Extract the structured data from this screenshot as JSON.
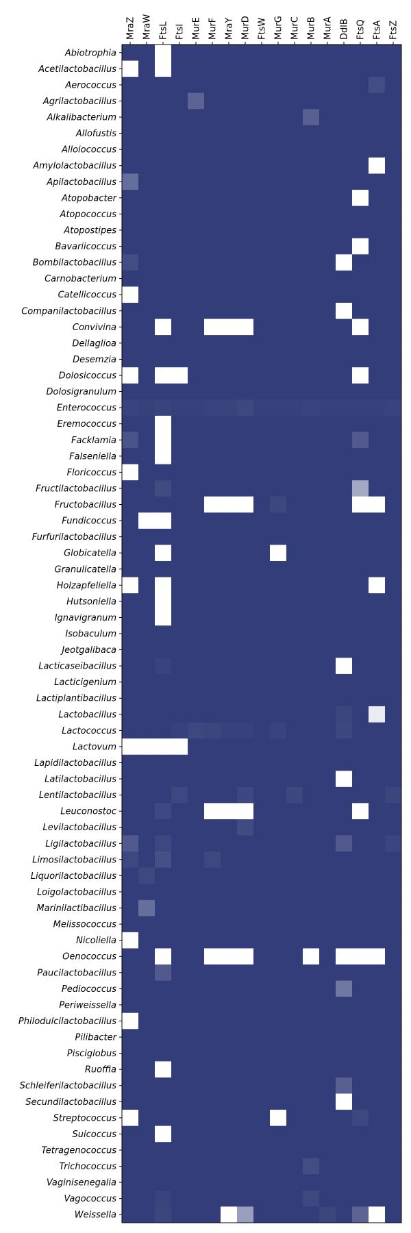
{
  "chart_data": {
    "type": "heatmap",
    "title": "",
    "xlabel": "",
    "ylabel": "",
    "colormap": {
      "low": "#333d79",
      "high": "#ffffff"
    },
    "value_range": [
      0,
      1
    ],
    "columns": [
      "MraZ",
      "MraW",
      "FtsL",
      "FtsI",
      "MurE",
      "MurF",
      "MraY",
      "MurD",
      "FtsW",
      "MurG",
      "MurC",
      "MurB",
      "MurA",
      "DdlB",
      "FtsQ",
      "FtsA",
      "FtsZ"
    ],
    "rows": [
      "Abiotrophia",
      "Acetilactobacillus",
      "Aerococcus",
      "Agrilactobacillus",
      "Alkalibacterium",
      "Allofustis",
      "Alloiococcus",
      "Amylolactobacillus",
      "Apilactobacillus",
      "Atopobacter",
      "Atopococcus",
      "Atopostipes",
      "Bavariicoccus",
      "Bombilactobacillus",
      "Carnobacterium",
      "Catellicoccus",
      "Companilactobacillus",
      "Convivina",
      "Dellaglioa",
      "Desemzia",
      "Dolosicoccus",
      "Dolosigranulum",
      "Enterococcus",
      "Eremococcus",
      "Facklamia",
      "Falseniella",
      "Floricoccus",
      "Fructilactobacillus",
      "Fructobacillus",
      "Fundicoccus",
      "Furfurilactobacillus",
      "Globicatella",
      "Granulicatella",
      "Holzapfeliella",
      "Hutsoniella",
      "Ignavigranum",
      "Isobaculum",
      "Jeotgalibaca",
      "Lacticaseibacillus",
      "Lacticigenium",
      "Lactiplantibacillus",
      "Lactobacillus",
      "Lactococcus",
      "Lactovum",
      "Lapidilactobacillus",
      "Latilactobacillus",
      "Lentilactobacillus",
      "Leuconostoc",
      "Levilactobacillus",
      "Ligilactobacillus",
      "Limosilactobacillus",
      "Liquorilactobacillus",
      "Loigolactobacillus",
      "Marinilactibacillus",
      "Melissococcus",
      "Nicoliella",
      "Oenococcus",
      "Paucilactobacillus",
      "Pediococcus",
      "Periweissella",
      "Philodulcilactobacillus",
      "Pilibacter",
      "Pisciglobus",
      "Ruoffia",
      "Schleiferilactobacillus",
      "Secundilactobacillus",
      "Streptococcus",
      "Suicoccus",
      "Tetragenococcus",
      "Trichococcus",
      "Vaginisenegalia",
      "Vagococcus",
      "Weissella"
    ],
    "values": [
      [
        0,
        0,
        1,
        0,
        0,
        0,
        0,
        0,
        0,
        0,
        0,
        0,
        0,
        0,
        0,
        0,
        0
      ],
      [
        1,
        0,
        1,
        0,
        0,
        0,
        0,
        0,
        0,
        0,
        0,
        0,
        0,
        0,
        0,
        0,
        0
      ],
      [
        0,
        0,
        0,
        0,
        0,
        0,
        0,
        0,
        0,
        0,
        0,
        0,
        0,
        0,
        0,
        0.08,
        0
      ],
      [
        0,
        0,
        0,
        0,
        0.2,
        0,
        0,
        0,
        0,
        0,
        0,
        0,
        0,
        0,
        0,
        0,
        0
      ],
      [
        0,
        0,
        0,
        0,
        0,
        0,
        0,
        0,
        0,
        0,
        0,
        0.18,
        0,
        0,
        0,
        0,
        0
      ],
      [
        0,
        0,
        0,
        0,
        0,
        0,
        0,
        0,
        0,
        0,
        0,
        0,
        0,
        0,
        0,
        0,
        0
      ],
      [
        0,
        0,
        0,
        0,
        0,
        0,
        0,
        0,
        0,
        0,
        0,
        0,
        0,
        0,
        0,
        0,
        0
      ],
      [
        0,
        0,
        0,
        0,
        0,
        0,
        0,
        0,
        0,
        0,
        0,
        0,
        0,
        0,
        0,
        1,
        0
      ],
      [
        0.25,
        0,
        0,
        0,
        0,
        0,
        0,
        0,
        0,
        0,
        0,
        0,
        0,
        0,
        0,
        0,
        0
      ],
      [
        0,
        0,
        0,
        0,
        0,
        0,
        0,
        0,
        0,
        0,
        0,
        0,
        0,
        0,
        1,
        0,
        0
      ],
      [
        0,
        0,
        0,
        0,
        0,
        0,
        0,
        0,
        0,
        0,
        0,
        0,
        0,
        0,
        0,
        0,
        0
      ],
      [
        0,
        0,
        0,
        0,
        0,
        0,
        0,
        0,
        0,
        0,
        0,
        0,
        0,
        0,
        0,
        0,
        0
      ],
      [
        0,
        0,
        0,
        0,
        0,
        0,
        0,
        0,
        0,
        0,
        0,
        0,
        0,
        0,
        1,
        0,
        0
      ],
      [
        0.08,
        0,
        0,
        0,
        0,
        0,
        0,
        0,
        0,
        0,
        0,
        0,
        0,
        1,
        0,
        0,
        0
      ],
      [
        0,
        0,
        0,
        0,
        0,
        0,
        0,
        0,
        0,
        0,
        0,
        0,
        0,
        0,
        0,
        0,
        0
      ],
      [
        1,
        0,
        0,
        0,
        0,
        0,
        0,
        0,
        0,
        0,
        0,
        0,
        0,
        0,
        0,
        0,
        0
      ],
      [
        0,
        0,
        0,
        0,
        0,
        0,
        0,
        0,
        0,
        0,
        0,
        0,
        0,
        1,
        0,
        0,
        0
      ],
      [
        0,
        0,
        1,
        0,
        0,
        1,
        1,
        1,
        0,
        0,
        0,
        0,
        0,
        0,
        1,
        0,
        0
      ],
      [
        0,
        0,
        0,
        0,
        0,
        0,
        0,
        0,
        0,
        0,
        0,
        0,
        0,
        0,
        0,
        0,
        0
      ],
      [
        0,
        0,
        0,
        0,
        0,
        0,
        0,
        0,
        0,
        0,
        0,
        0,
        0,
        0,
        0,
        0,
        0
      ],
      [
        1,
        0,
        1,
        1,
        0,
        0,
        0,
        0,
        0,
        0,
        0,
        0,
        0,
        0,
        1,
        0,
        0
      ],
      [
        0,
        0,
        0,
        0,
        0,
        0,
        0,
        0,
        0,
        0,
        0,
        0,
        0,
        0,
        0,
        0,
        0
      ],
      [
        0.03,
        0.02,
        0.03,
        0.02,
        0.02,
        0.03,
        0.03,
        0.05,
        0.02,
        0.02,
        0.02,
        0.03,
        0.02,
        0.02,
        0.02,
        0.02,
        0.03
      ],
      [
        0,
        0,
        1,
        0,
        0,
        0,
        0,
        0,
        0,
        0,
        0,
        0,
        0,
        0,
        0,
        0,
        0
      ],
      [
        0.12,
        0,
        1,
        0,
        0,
        0,
        0,
        0,
        0,
        0,
        0,
        0,
        0,
        0,
        0.15,
        0,
        0
      ],
      [
        0,
        0,
        1,
        0,
        0,
        0,
        0,
        0,
        0,
        0,
        0,
        0,
        0,
        0,
        0,
        0,
        0
      ],
      [
        1,
        0,
        0,
        0,
        0,
        0,
        0,
        0,
        0,
        0,
        0,
        0,
        0,
        0,
        0,
        0,
        0
      ],
      [
        0,
        0,
        0.07,
        0,
        0,
        0,
        0,
        0,
        0,
        0,
        0,
        0,
        0,
        0,
        0.55,
        0,
        0
      ],
      [
        0,
        0,
        0,
        0,
        0,
        1,
        1,
        1,
        0,
        0.05,
        0,
        0,
        0,
        0,
        1,
        1,
        0
      ],
      [
        0,
        1,
        1,
        0,
        0,
        0,
        0,
        0,
        0,
        0,
        0,
        0,
        0,
        0,
        0,
        0,
        0
      ],
      [
        0,
        0,
        0,
        0,
        0,
        0,
        0,
        0,
        0,
        0,
        0,
        0,
        0,
        0,
        0,
        0,
        0
      ],
      [
        0,
        0,
        1,
        0,
        0,
        0,
        0,
        0,
        0,
        1,
        0,
        0,
        0,
        0,
        0,
        0,
        0
      ],
      [
        0,
        0,
        0,
        0,
        0,
        0,
        0,
        0,
        0,
        0,
        0,
        0,
        0,
        0,
        0,
        0,
        0
      ],
      [
        1,
        0,
        1,
        0,
        0,
        0,
        0,
        0,
        0,
        0,
        0,
        0,
        0,
        0,
        0,
        1,
        0
      ],
      [
        0,
        0,
        1,
        0,
        0,
        0,
        0,
        0,
        0,
        0,
        0,
        0,
        0,
        0,
        0,
        0,
        0
      ],
      [
        0,
        0,
        1,
        0,
        0,
        0,
        0,
        0,
        0,
        0,
        0,
        0,
        0,
        0,
        0,
        0,
        0
      ],
      [
        0,
        0,
        0,
        0,
        0,
        0,
        0,
        0,
        0,
        0,
        0,
        0,
        0,
        0,
        0,
        0,
        0
      ],
      [
        0,
        0,
        0,
        0,
        0,
        0,
        0,
        0,
        0,
        0,
        0,
        0,
        0,
        0,
        0,
        0,
        0
      ],
      [
        0,
        0,
        0.03,
        0,
        0,
        0,
        0,
        0,
        0,
        0,
        0,
        0,
        0,
        1,
        0,
        0,
        0
      ],
      [
        0,
        0,
        0,
        0,
        0,
        0,
        0,
        0,
        0,
        0,
        0,
        0,
        0,
        0,
        0,
        0,
        0
      ],
      [
        0,
        0,
        0,
        0,
        0,
        0,
        0,
        0,
        0,
        0,
        0,
        0,
        0,
        0,
        0,
        0,
        0
      ],
      [
        0,
        0,
        0,
        0,
        0,
        0,
        0,
        0,
        0,
        0,
        0,
        0,
        0,
        0.04,
        0,
        0.9,
        0
      ],
      [
        0,
        0,
        0,
        0.02,
        0.05,
        0.04,
        0.02,
        0.02,
        0,
        0.03,
        0,
        0,
        0,
        0.05,
        0,
        0,
        0
      ],
      [
        1,
        1,
        1,
        1,
        0,
        0,
        0,
        0,
        0,
        0,
        0,
        0,
        0,
        0,
        0,
        0,
        0
      ],
      [
        0,
        0,
        0,
        0,
        0,
        0,
        0,
        0,
        0,
        0,
        0,
        0,
        0,
        0,
        0,
        0,
        0
      ],
      [
        0,
        0,
        0,
        0,
        0,
        0,
        0,
        0,
        0,
        0,
        0,
        0,
        0,
        1,
        0,
        0,
        0
      ],
      [
        0,
        0,
        0,
        0.05,
        0,
        0,
        0,
        0.05,
        0,
        0,
        0.05,
        0,
        0,
        0,
        0,
        0,
        0.04
      ],
      [
        0,
        0,
        0.06,
        0,
        0,
        1,
        1,
        1,
        0,
        0,
        0,
        0,
        0,
        0,
        1,
        0,
        0
      ],
      [
        0,
        0,
        0,
        0,
        0,
        0,
        0,
        0.07,
        0,
        0,
        0,
        0,
        0,
        0,
        0,
        0,
        0
      ],
      [
        0.15,
        0,
        0.05,
        0,
        0,
        0,
        0,
        0,
        0,
        0,
        0,
        0,
        0,
        0.15,
        0,
        0,
        0.04
      ],
      [
        0.05,
        0,
        0.1,
        0,
        0,
        0.05,
        0,
        0,
        0,
        0,
        0,
        0,
        0,
        0,
        0,
        0,
        0
      ],
      [
        0,
        0.05,
        0,
        0,
        0,
        0,
        0,
        0,
        0,
        0,
        0,
        0,
        0,
        0,
        0,
        0,
        0
      ],
      [
        0,
        0,
        0,
        0,
        0,
        0,
        0,
        0,
        0,
        0,
        0,
        0,
        0,
        0,
        0,
        0,
        0
      ],
      [
        0,
        0.25,
        0,
        0,
        0,
        0,
        0,
        0,
        0,
        0,
        0,
        0,
        0,
        0,
        0,
        0,
        0
      ],
      [
        0,
        0,
        0,
        0,
        0,
        0,
        0,
        0,
        0,
        0,
        0,
        0,
        0,
        0,
        0,
        0,
        0
      ],
      [
        1,
        0,
        0,
        0,
        0,
        0,
        0,
        0,
        0,
        0,
        0,
        0,
        0,
        0,
        0,
        0,
        0
      ],
      [
        0,
        0,
        1,
        0,
        0,
        1,
        1,
        1,
        0,
        0,
        0,
        1,
        0,
        1,
        1,
        1,
        0
      ],
      [
        0,
        0,
        0.15,
        0,
        0,
        0,
        0,
        0,
        0,
        0,
        0,
        0,
        0,
        0,
        0,
        0,
        0
      ],
      [
        0,
        0,
        0,
        0,
        0,
        0,
        0,
        0,
        0,
        0,
        0,
        0,
        0,
        0.3,
        0,
        0,
        0
      ],
      [
        0,
        0,
        0,
        0,
        0,
        0,
        0,
        0,
        0,
        0,
        0,
        0,
        0,
        0,
        0,
        0,
        0
      ],
      [
        1,
        0,
        0,
        0,
        0,
        0,
        0,
        0,
        0,
        0,
        0,
        0,
        0,
        0,
        0,
        0,
        0
      ],
      [
        0,
        0,
        0,
        0,
        0,
        0,
        0,
        0,
        0,
        0,
        0,
        0,
        0,
        0,
        0,
        0,
        0
      ],
      [
        0,
        0,
        0,
        0,
        0,
        0,
        0,
        0,
        0,
        0,
        0,
        0,
        0,
        0,
        0,
        0,
        0
      ],
      [
        0,
        0,
        1,
        0,
        0,
        0,
        0,
        0,
        0,
        0,
        0,
        0,
        0,
        0,
        0,
        0,
        0
      ],
      [
        0,
        0,
        0,
        0,
        0,
        0,
        0,
        0,
        0,
        0,
        0,
        0,
        0,
        0.18,
        0,
        0,
        0
      ],
      [
        0,
        0,
        0,
        0,
        0,
        0,
        0,
        0,
        0,
        0,
        0,
        0,
        0,
        1,
        0,
        0,
        0
      ],
      [
        1,
        0,
        0,
        0,
        0,
        0,
        0,
        0,
        0,
        1,
        0,
        0,
        0,
        0,
        0.05,
        0,
        0
      ],
      [
        0,
        0,
        1,
        0,
        0,
        0,
        0,
        0,
        0,
        0,
        0,
        0,
        0,
        0,
        0,
        0,
        0
      ],
      [
        0,
        0,
        0,
        0,
        0,
        0,
        0,
        0,
        0,
        0,
        0,
        0,
        0,
        0,
        0,
        0,
        0
      ],
      [
        0,
        0,
        0,
        0,
        0,
        0,
        0,
        0,
        0,
        0,
        0,
        0.08,
        0,
        0,
        0,
        0,
        0
      ],
      [
        0,
        0,
        0,
        0,
        0,
        0,
        0,
        0,
        0,
        0,
        0,
        0,
        0,
        0,
        0,
        0,
        0
      ],
      [
        0,
        0,
        0.03,
        0,
        0,
        0,
        0,
        0,
        0,
        0,
        0,
        0.05,
        0,
        0,
        0,
        0,
        0
      ],
      [
        0,
        0,
        0.04,
        0,
        0,
        0,
        1,
        0.5,
        0,
        0,
        0,
        0,
        0.04,
        0,
        0.2,
        1,
        0
      ]
    ],
    "grid": false,
    "legend": "none"
  }
}
